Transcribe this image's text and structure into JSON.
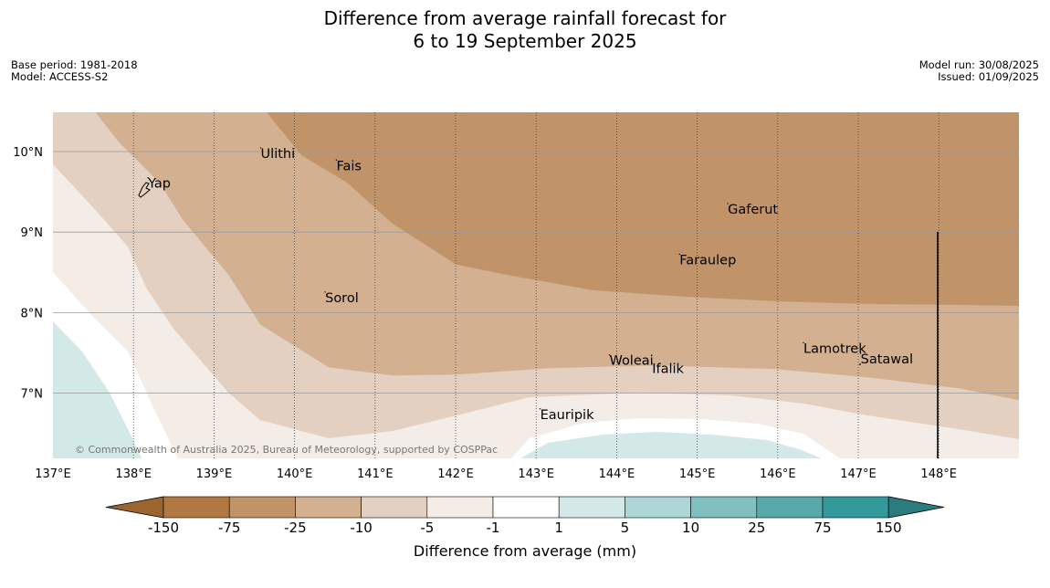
{
  "title": {
    "line1": "Difference from average rainfall forecast for",
    "line2": "6 to 19 September 2025"
  },
  "meta_left": {
    "base_period": "Base period: 1981-2018",
    "model": "Model: ACCESS-S2"
  },
  "meta_right": {
    "model_run": "Model run: 30/08/2025",
    "issued": "Issued: 01/09/2025"
  },
  "copyright": "© Commonwealth of Australia 2025, Bureau of Meteorology, supported by COSPPac",
  "lon_ticks": [
    "137°E",
    "138°E",
    "139°E",
    "140°E",
    "141°E",
    "142°E",
    "143°E",
    "144°E",
    "145°E",
    "146°E",
    "147°E",
    "148°E"
  ],
  "lat_ticks": [
    "10°N",
    "9°N",
    "8°N",
    "7°N"
  ],
  "places": [
    {
      "name": "Yap",
      "lon": 138.18,
      "lat": 9.55
    },
    {
      "name": "Ulithi",
      "lon": 139.58,
      "lat": 9.92
    },
    {
      "name": "Fais",
      "lon": 140.52,
      "lat": 9.77
    },
    {
      "name": "Gaferut",
      "lon": 145.38,
      "lat": 9.23
    },
    {
      "name": "Faraulep",
      "lon": 144.78,
      "lat": 8.6
    },
    {
      "name": "Sorol",
      "lon": 140.38,
      "lat": 8.13
    },
    {
      "name": "Woleai",
      "lon": 143.91,
      "lat": 7.35
    },
    {
      "name": "Ifalik",
      "lon": 144.44,
      "lat": 7.25
    },
    {
      "name": "Lamotrek",
      "lon": 146.32,
      "lat": 7.5
    },
    {
      "name": "Satawal",
      "lon": 147.03,
      "lat": 7.37
    },
    {
      "name": "Eauripik",
      "lon": 143.05,
      "lat": 6.68
    }
  ],
  "colorbar": {
    "label": "Difference from average (mm)",
    "ticks": [
      "-150",
      "-75",
      "-25",
      "-10",
      "-5",
      "-1",
      "1",
      "5",
      "10",
      "25",
      "75",
      "150"
    ],
    "colors": [
      "#9c6530",
      "#b07843",
      "#c09468",
      "#d3b190",
      "#e3d0c0",
      "#f4ece6",
      "#ffffff",
      "#d3e9e8",
      "#add6d7",
      "#80c0c0",
      "#58aaaa",
      "#34999a",
      "#2a7c7d"
    ]
  }
}
